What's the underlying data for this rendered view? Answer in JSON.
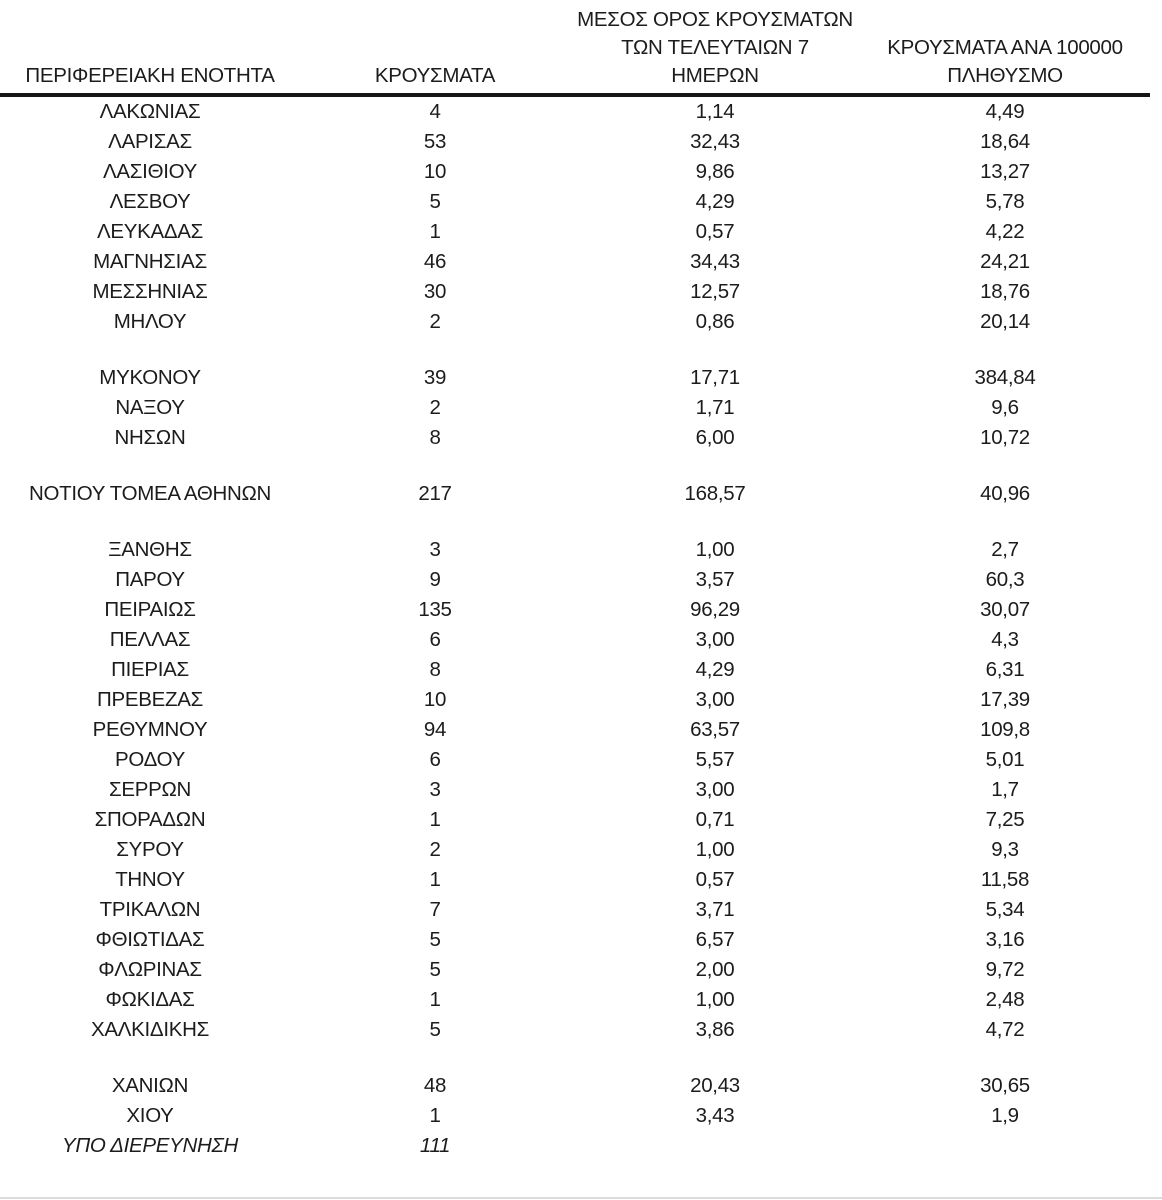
{
  "table": {
    "headers": {
      "region": "ΠΕΡΙΦΕΡΕΙΑΚΗ ΕΝΟΤΗΤΑ",
      "cases": "ΚΡΟΥΣΜΑΤΑ",
      "avg7": "ΜΕΣΟΣ ΟΡΟΣ ΚΡΟΥΣΜΑΤΩΝ\nΤΩΝ ΤΕΛΕΥΤΑΙΩΝ 7\nΗΜΕΡΩΝ",
      "per100k": "ΚΡΟΥΣΜΑΤΑ ΑΝΑ 100000\nΠΛΗΘΥΣΜΟ"
    },
    "rows": [
      {
        "region": "ΛΑΚΩΝΙΑΣ",
        "cases": "4",
        "avg7": "1,14",
        "per100k": "4,49"
      },
      {
        "region": "ΛΑΡΙΣΑΣ",
        "cases": "53",
        "avg7": "32,43",
        "per100k": "18,64"
      },
      {
        "region": "ΛΑΣΙΘΙΟΥ",
        "cases": "10",
        "avg7": "9,86",
        "per100k": "13,27"
      },
      {
        "region": "ΛΕΣΒΟΥ",
        "cases": "5",
        "avg7": "4,29",
        "per100k": "5,78"
      },
      {
        "region": "ΛΕΥΚΑΔΑΣ",
        "cases": "1",
        "avg7": "0,57",
        "per100k": "4,22"
      },
      {
        "region": "ΜΑΓΝΗΣΙΑΣ",
        "cases": "46",
        "avg7": "34,43",
        "per100k": "24,21"
      },
      {
        "region": "ΜΕΣΣΗΝΙΑΣ",
        "cases": "30",
        "avg7": "12,57",
        "per100k": "18,76"
      },
      {
        "region": "ΜΗΛΟΥ",
        "cases": "2",
        "avg7": "0,86",
        "per100k": "20,14"
      },
      {
        "spacer": true
      },
      {
        "region": "ΜΥΚΟΝΟΥ",
        "cases": "39",
        "avg7": "17,71",
        "per100k": "384,84"
      },
      {
        "region": "ΝΑΞΟΥ",
        "cases": "2",
        "avg7": "1,71",
        "per100k": "9,6"
      },
      {
        "region": "ΝΗΣΩΝ",
        "cases": "8",
        "avg7": "6,00",
        "per100k": "10,72"
      },
      {
        "spacer": true
      },
      {
        "region": "ΝΟΤΙΟΥ ΤΟΜΕΑ ΑΘΗΝΩΝ",
        "cases": "217",
        "avg7": "168,57",
        "per100k": "40,96"
      },
      {
        "spacer": true
      },
      {
        "region": "ΞΑΝΘΗΣ",
        "cases": "3",
        "avg7": "1,00",
        "per100k": "2,7"
      },
      {
        "region": "ΠΑΡΟΥ",
        "cases": "9",
        "avg7": "3,57",
        "per100k": "60,3"
      },
      {
        "region": "ΠΕΙΡΑΙΩΣ",
        "cases": "135",
        "avg7": "96,29",
        "per100k": "30,07"
      },
      {
        "region": "ΠΕΛΛΑΣ",
        "cases": "6",
        "avg7": "3,00",
        "per100k": "4,3"
      },
      {
        "region": "ΠΙΕΡΙΑΣ",
        "cases": "8",
        "avg7": "4,29",
        "per100k": "6,31"
      },
      {
        "region": "ΠΡΕΒΕΖΑΣ",
        "cases": "10",
        "avg7": "3,00",
        "per100k": "17,39"
      },
      {
        "region": "ΡΕΘΥΜΝΟΥ",
        "cases": "94",
        "avg7": "63,57",
        "per100k": "109,8"
      },
      {
        "region": "ΡΟΔΟΥ",
        "cases": "6",
        "avg7": "5,57",
        "per100k": "5,01"
      },
      {
        "region": "ΣΕΡΡΩΝ",
        "cases": "3",
        "avg7": "3,00",
        "per100k": "1,7"
      },
      {
        "region": "ΣΠΟΡΑΔΩΝ",
        "cases": "1",
        "avg7": "0,71",
        "per100k": "7,25"
      },
      {
        "region": "ΣΥΡΟΥ",
        "cases": "2",
        "avg7": "1,00",
        "per100k": "9,3"
      },
      {
        "region": "ΤΗΝΟΥ",
        "cases": "1",
        "avg7": "0,57",
        "per100k": "11,58"
      },
      {
        "region": "ΤΡΙΚΑΛΩΝ",
        "cases": "7",
        "avg7": "3,71",
        "per100k": "5,34"
      },
      {
        "region": "ΦΘΙΩΤΙΔΑΣ",
        "cases": "5",
        "avg7": "6,57",
        "per100k": "3,16"
      },
      {
        "region": "ΦΛΩΡΙΝΑΣ",
        "cases": "5",
        "avg7": "2,00",
        "per100k": "9,72"
      },
      {
        "region": "ΦΩΚΙΔΑΣ",
        "cases": "1",
        "avg7": "1,00",
        "per100k": "2,48"
      },
      {
        "region": "ΧΑΛΚΙΔΙΚΗΣ",
        "cases": "5",
        "avg7": "3,86",
        "per100k": "4,72"
      },
      {
        "spacer": true
      },
      {
        "region": "ΧΑΝΙΩΝ",
        "cases": "48",
        "avg7": "20,43",
        "per100k": "30,65"
      },
      {
        "region": "ΧΙΟΥ",
        "cases": "1",
        "avg7": "3,43",
        "per100k": "1,9"
      },
      {
        "region": "ΥΠΟ ΔΙΕΡΕΥΝΗΣΗ",
        "cases": "111",
        "avg7": "",
        "per100k": "",
        "italic": true
      }
    ]
  }
}
